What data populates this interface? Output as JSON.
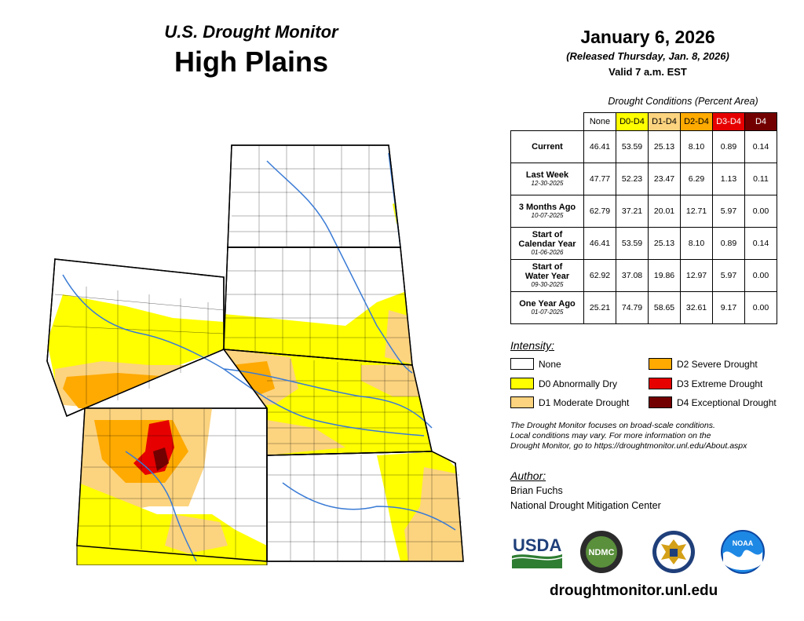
{
  "header": {
    "subtitle": "U.S. Drought Monitor",
    "region": "High Plains",
    "date": "January 6, 2026",
    "released": "(Released Thursday, Jan. 8, 2026)",
    "valid": "Valid 7 a.m. EST"
  },
  "table": {
    "caption": "Drought Conditions (Percent Area)",
    "columns": [
      "None",
      "D0-D4",
      "D1-D4",
      "D2-D4",
      "D3-D4",
      "D4"
    ],
    "rows": [
      {
        "label": "Current",
        "label2": "",
        "date": "",
        "values": [
          "46.41",
          "53.59",
          "25.13",
          "8.10",
          "0.89",
          "0.14"
        ]
      },
      {
        "label": "Last Week",
        "label2": "",
        "date": "12-30-2025",
        "values": [
          "47.77",
          "52.23",
          "23.47",
          "6.29",
          "1.13",
          "0.11"
        ]
      },
      {
        "label": "3 Months Ago",
        "label2": "",
        "date": "10-07-2025",
        "values": [
          "62.79",
          "37.21",
          "20.01",
          "12.71",
          "5.97",
          "0.00"
        ]
      },
      {
        "label": "Start of",
        "label2": "Calendar Year",
        "date": "01-06-2026",
        "values": [
          "46.41",
          "53.59",
          "25.13",
          "8.10",
          "0.89",
          "0.14"
        ]
      },
      {
        "label": "Start of",
        "label2": "Water Year",
        "date": "09-30-2025",
        "values": [
          "62.92",
          "37.08",
          "19.86",
          "12.97",
          "5.97",
          "0.00"
        ]
      },
      {
        "label": "One Year Ago",
        "label2": "",
        "date": "01-07-2025",
        "values": [
          "25.21",
          "74.79",
          "58.65",
          "32.61",
          "9.17",
          "0.00"
        ]
      }
    ]
  },
  "legend": {
    "title": "Intensity:",
    "items": [
      {
        "label": "None",
        "color": "#ffffff"
      },
      {
        "label": "D0 Abnormally Dry",
        "color": "#ffff00"
      },
      {
        "label": "D1 Moderate Drought",
        "color": "#fcd37f"
      },
      {
        "label": "D2 Severe Drought",
        "color": "#ffaa00"
      },
      {
        "label": "D3 Extreme Drought",
        "color": "#e60000"
      },
      {
        "label": "D4 Exceptional Drought",
        "color": "#730000"
      }
    ]
  },
  "disclaimer": {
    "line1": "The Drought Monitor focuses on broad-scale conditions.",
    "line2": "Local conditions may vary. For more information on the",
    "line3": "Drought Monitor, go to https://droughtmonitor.unl.edu/About.aspx"
  },
  "author": {
    "title": "Author:",
    "name": "Brian Fuchs",
    "org": "National Drought Mitigation Center"
  },
  "logos": {
    "usda": "USDA",
    "ndmc": "NDMC",
    "noaa": "NOAA"
  },
  "url": "droughtmonitor.unl.edu",
  "colors": {
    "none": "#ffffff",
    "d0": "#ffff00",
    "d1": "#fcd37f",
    "d2": "#ffaa00",
    "d3": "#e60000",
    "d4": "#730000",
    "river": "#3a7bd5"
  }
}
